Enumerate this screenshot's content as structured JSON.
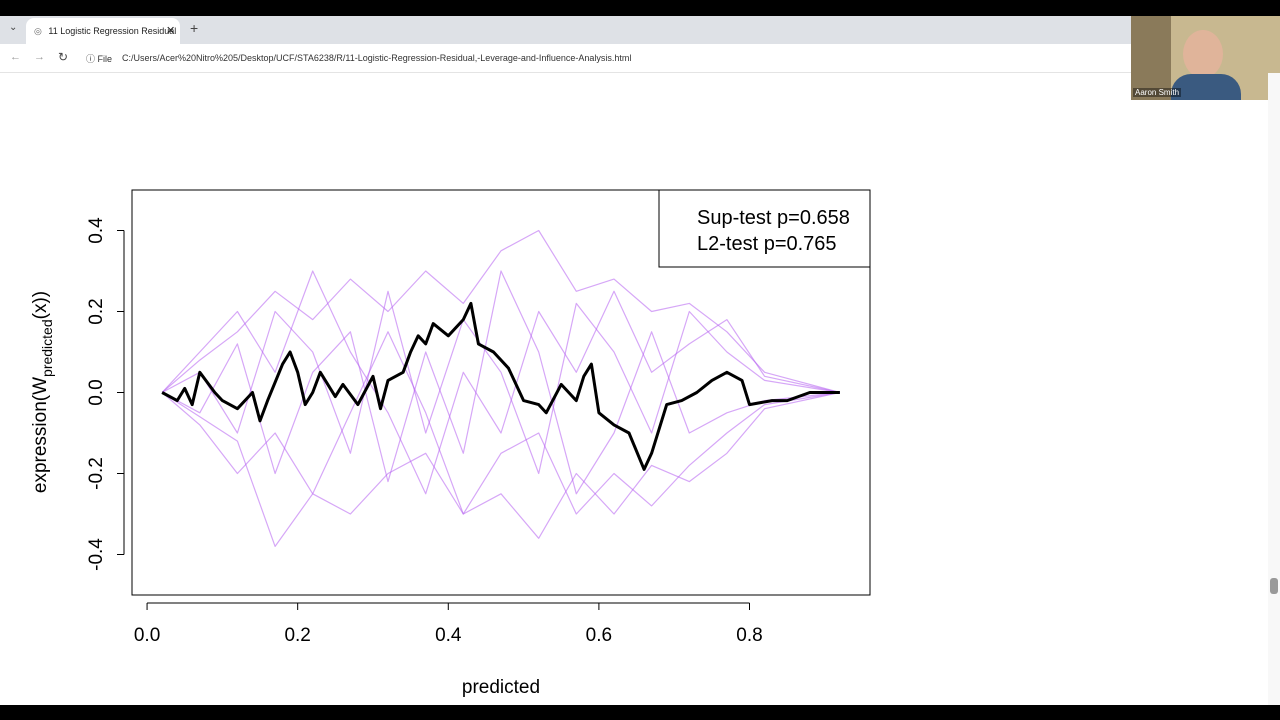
{
  "browser": {
    "tab_title": "11 Logistic Regression Residual",
    "scheme": "File",
    "url": "C:/Users/Acer%20Nitro%205/Desktop/UCF/STA6238/R/11-Logistic-Regression-Residual,-Leverage-and-Influence-Analysis.html",
    "webcam_name": "Aaron Smith"
  },
  "chart_data": {
    "type": "line",
    "xlabel": "predicted",
    "ylabel": {
      "before": "expression(W",
      "subscript": "predicted",
      "after": "(x))"
    },
    "annotations": [
      "Sup-test p=0.658",
      "L2-test p=0.765"
    ],
    "xlim": [
      -0.02,
      0.96
    ],
    "ylim": [
      -0.5,
      0.5
    ],
    "xticks": [
      {
        "value": 0,
        "label": "0.0"
      },
      0.2,
      0.4,
      0.6,
      0.8
    ],
    "yticks": [
      -0.4,
      -0.2,
      {
        "value": 0,
        "label": "0.0"
      },
      0.2,
      0.4
    ],
    "series": [
      {
        "color": "#b45ef0",
        "x": [
          0.02,
          0.07,
          0.12,
          0.17,
          0.22,
          0.27,
          0.32,
          0.37,
          0.42,
          0.47,
          0.52,
          0.57,
          0.62,
          0.67,
          0.72,
          0.77,
          0.82,
          0.92
        ],
        "values": [
          0,
          0.08,
          0.15,
          0.25,
          0.18,
          0.28,
          0.2,
          0.3,
          0.22,
          0.35,
          0.4,
          0.25,
          0.28,
          0.2,
          0.22,
          0.15,
          0.05,
          0
        ]
      },
      {
        "color": "#b45ef0",
        "x": [
          0.02,
          0.07,
          0.12,
          0.17,
          0.22,
          0.27,
          0.32,
          0.37,
          0.42,
          0.47,
          0.52,
          0.57,
          0.62,
          0.67,
          0.72,
          0.77,
          0.82,
          0.92
        ],
        "values": [
          0,
          -0.06,
          -0.12,
          -0.38,
          -0.25,
          -0.3,
          -0.2,
          -0.15,
          -0.3,
          -0.25,
          -0.36,
          -0.2,
          -0.3,
          -0.18,
          -0.22,
          -0.15,
          -0.04,
          0
        ]
      },
      {
        "color": "#b45ef0",
        "x": [
          0.02,
          0.07,
          0.12,
          0.17,
          0.22,
          0.27,
          0.32,
          0.37,
          0.42,
          0.47,
          0.52,
          0.57,
          0.62,
          0.67,
          0.72,
          0.77,
          0.82,
          0.92
        ],
        "values": [
          0,
          0.05,
          -0.1,
          0.2,
          0.1,
          -0.15,
          0.25,
          -0.1,
          0.18,
          0.05,
          -0.2,
          0.22,
          0.1,
          -0.1,
          0.2,
          0.1,
          0.03,
          0
        ]
      },
      {
        "color": "#b45ef0",
        "x": [
          0.02,
          0.07,
          0.12,
          0.17,
          0.22,
          0.27,
          0.32,
          0.37,
          0.42,
          0.47,
          0.52,
          0.57,
          0.62,
          0.67,
          0.72,
          0.77,
          0.82,
          0.92
        ],
        "values": [
          0,
          -0.05,
          0.12,
          -0.2,
          0.05,
          0.15,
          -0.22,
          0.1,
          -0.15,
          0.3,
          0.1,
          -0.25,
          -0.1,
          0.15,
          -0.1,
          -0.05,
          -0.02,
          0
        ]
      },
      {
        "color": "#b45ef0",
        "x": [
          0.02,
          0.07,
          0.12,
          0.17,
          0.22,
          0.27,
          0.32,
          0.37,
          0.42,
          0.47,
          0.52,
          0.57,
          0.62,
          0.67,
          0.72,
          0.77,
          0.82,
          0.92
        ],
        "values": [
          0,
          0.1,
          0.2,
          0.05,
          0.3,
          0.1,
          -0.05,
          -0.25,
          0.05,
          -0.1,
          0.2,
          0.05,
          0.25,
          0.05,
          0.12,
          0.18,
          0.04,
          0
        ]
      },
      {
        "color": "#b45ef0",
        "x": [
          0.02,
          0.07,
          0.12,
          0.17,
          0.22,
          0.27,
          0.32,
          0.37,
          0.42,
          0.47,
          0.52,
          0.57,
          0.62,
          0.67,
          0.72,
          0.77,
          0.82,
          0.92
        ],
        "values": [
          0,
          -0.08,
          -0.2,
          -0.1,
          -0.25,
          -0.05,
          0.15,
          -0.05,
          -0.3,
          -0.15,
          -0.1,
          -0.3,
          -0.2,
          -0.28,
          -0.18,
          -0.1,
          -0.03,
          0
        ]
      },
      {
        "color": "#000000",
        "x": [
          0.02,
          0.04,
          0.05,
          0.06,
          0.07,
          0.09,
          0.1,
          0.12,
          0.14,
          0.15,
          0.16,
          0.18,
          0.19,
          0.2,
          0.21,
          0.22,
          0.23,
          0.25,
          0.26,
          0.28,
          0.3,
          0.31,
          0.32,
          0.34,
          0.35,
          0.36,
          0.37,
          0.38,
          0.4,
          0.42,
          0.43,
          0.44,
          0.46,
          0.48,
          0.5,
          0.52,
          0.53,
          0.55,
          0.57,
          0.58,
          0.59,
          0.6,
          0.62,
          0.64,
          0.66,
          0.67,
          0.69,
          0.71,
          0.73,
          0.75,
          0.77,
          0.79,
          0.8,
          0.83,
          0.85,
          0.88,
          0.92
        ],
        "values": [
          0,
          -0.02,
          0.01,
          -0.03,
          0.05,
          0,
          -0.02,
          -0.04,
          0,
          -0.07,
          -0.02,
          0.07,
          0.1,
          0.05,
          -0.03,
          0,
          0.05,
          -0.01,
          0.02,
          -0.03,
          0.04,
          -0.04,
          0.03,
          0.05,
          0.1,
          0.14,
          0.12,
          0.17,
          0.14,
          0.18,
          0.22,
          0.12,
          0.1,
          0.06,
          -0.02,
          -0.03,
          -0.05,
          0.02,
          -0.02,
          0.04,
          0.07,
          -0.05,
          -0.08,
          -0.1,
          -0.19,
          -0.15,
          -0.03,
          -0.02,
          0,
          0.03,
          0.05,
          0.03,
          -0.03,
          -0.02,
          -0.02,
          0,
          0
        ]
      }
    ]
  }
}
